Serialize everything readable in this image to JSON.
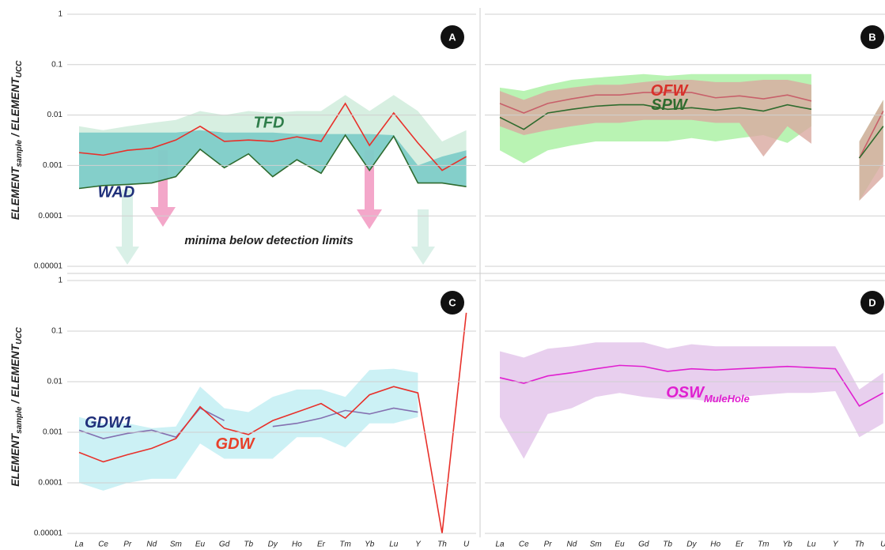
{
  "chart_data": [
    {
      "type": "line",
      "panel_label": "A",
      "log_y": true,
      "grid": true,
      "show_x_labels": false,
      "show_ytick_labels": true,
      "y_label": {
        "text": "ELEMENT",
        "sub": "sample",
        "text2": " / ELEMENT",
        "sub2": "UCC"
      },
      "annotation": "minima below detection limits",
      "categories": [
        "La",
        "Ce",
        "Pr",
        "Nd",
        "Sm",
        "Eu",
        "Gd",
        "Tb",
        "Dy",
        "Ho",
        "Er",
        "Tm",
        "Yb",
        "Lu",
        "Y",
        "Th",
        "U"
      ],
      "ylim": [
        1e-05,
        1
      ],
      "yticks": [
        {
          "value": 1e-05,
          "label": "0.00001"
        },
        0.0001,
        0.001,
        0.01,
        0.1,
        1
      ],
      "bands": [
        {
          "name": "TFD",
          "color": "#cdebd9",
          "label_color": "#2e7d4a",
          "upper": [
            0.006,
            0.005,
            0.006,
            0.007,
            0.008,
            0.012,
            0.01,
            0.012,
            0.011,
            0.012,
            0.012,
            0.025,
            0.012,
            0.025,
            0.012,
            0.003,
            0.005
          ],
          "lower": [
            0.00035,
            0.0004,
            0.00042,
            0.00045,
            0.0006,
            0.0021,
            0.0009,
            0.0017,
            0.0006,
            0.0013,
            0.0007,
            0.004,
            0.0008,
            0.0038,
            0.00045,
            0.00045,
            0.00038
          ]
        },
        {
          "name": "WAD",
          "color": "#6fc7c4",
          "label_color": "#1f2f7a",
          "upper": [
            0.0045,
            0.0045,
            0.0045,
            0.0045,
            0.0045,
            0.005,
            0.0045,
            0.0045,
            0.0045,
            0.0042,
            0.0042,
            0.0042,
            0.0042,
            0.004,
            0.001,
            0.0015,
            0.002
          ],
          "lower": [
            0.00035,
            0.0004,
            0.00042,
            0.00045,
            0.0006,
            0.0021,
            0.0009,
            0.0017,
            0.0006,
            0.0013,
            0.0007,
            0.004,
            0.0008,
            0.0038,
            0.00045,
            0.00045,
            0.00038
          ]
        }
      ],
      "series": [
        {
          "color": "#e8302a",
          "values": [
            0.0018,
            0.0016,
            0.002,
            0.0022,
            0.0032,
            0.006,
            0.003,
            0.0032,
            0.003,
            0.0037,
            0.003,
            0.017,
            0.0025,
            0.011,
            0.0028,
            0.0008,
            0.0015
          ]
        },
        {
          "color": "#2f6b2f",
          "values": [
            0.00035,
            0.0004,
            0.00042,
            0.00045,
            0.0006,
            0.0021,
            0.0009,
            0.0017,
            0.0006,
            0.0013,
            0.0007,
            0.004,
            0.0008,
            0.0038,
            0.00045,
            0.00045,
            0.00038
          ]
        }
      ]
    },
    {
      "type": "line",
      "panel_label": "B",
      "log_y": true,
      "grid": true,
      "show_x_labels": false,
      "show_ytick_labels": false,
      "categories": [
        "La",
        "Ce",
        "Pr",
        "Nd",
        "Sm",
        "Eu",
        "Gd",
        "Tb",
        "Dy",
        "Ho",
        "Er",
        "Tm",
        "Yb",
        "Lu",
        "Y",
        "Th",
        "U"
      ],
      "ylim": [
        1e-05,
        1
      ],
      "yticks": [
        {
          "value": 1e-05,
          "label": "0.00001"
        },
        0.0001,
        0.001,
        0.01,
        0.1,
        1
      ],
      "bands": [
        {
          "color": "#a8f0a0",
          "upper": [
            0.035,
            0.03,
            0.04,
            0.05,
            0.055,
            0.06,
            0.065,
            0.06,
            0.065,
            0.065,
            0.065,
            0.065,
            0.065,
            0.065,
            null,
            0.003,
            0.02
          ],
          "lower": [
            0.002,
            0.0011,
            0.002,
            0.0025,
            0.003,
            0.003,
            0.003,
            0.003,
            0.0035,
            0.003,
            0.0035,
            0.004,
            0.0028,
            0.006,
            null,
            0.0002,
            0.0012
          ]
        },
        {
          "color": "#d9a9a0",
          "upper": [
            0.03,
            0.02,
            0.03,
            0.035,
            0.04,
            0.04,
            0.045,
            0.05,
            0.05,
            0.045,
            0.045,
            0.05,
            0.05,
            0.04,
            null,
            0.003,
            0.02
          ],
          "lower": [
            0.006,
            0.004,
            0.005,
            0.006,
            0.007,
            0.007,
            0.008,
            0.008,
            0.008,
            0.007,
            0.007,
            0.0015,
            0.006,
            0.0027,
            null,
            0.0002,
            0.0006
          ]
        }
      ],
      "series": [
        {
          "name": "OFW",
          "color": "#c8606a",
          "label_color": "#d8312a",
          "values": [
            0.017,
            0.011,
            0.017,
            0.021,
            0.025,
            0.025,
            0.028,
            0.028,
            0.028,
            0.022,
            0.024,
            0.021,
            0.025,
            0.019,
            null,
            0.0014,
            0.012
          ]
        },
        {
          "name": "SPW",
          "color": "#2e6b2e",
          "label_color": "#2e6b2e",
          "values": [
            0.009,
            0.0052,
            0.011,
            0.013,
            0.015,
            0.016,
            0.016,
            0.013,
            0.014,
            0.0125,
            0.014,
            0.012,
            0.016,
            0.013,
            null,
            0.0014,
            0.006
          ]
        }
      ]
    },
    {
      "type": "line",
      "panel_label": "C",
      "log_y": true,
      "grid": true,
      "show_x_labels": true,
      "show_ytick_labels": true,
      "y_label": {
        "text": "ELEMENT",
        "sub": "sample",
        "text2": " / ELEMENT",
        "sub2": "UCC"
      },
      "categories": [
        "La",
        "Ce",
        "Pr",
        "Nd",
        "Sm",
        "Eu",
        "Gd",
        "Tb",
        "Dy",
        "Ho",
        "Er",
        "Tm",
        "Yb",
        "Lu",
        "Y",
        "Th",
        "U"
      ],
      "ylim": [
        1e-05,
        1
      ],
      "yticks": [
        {
          "value": 1e-05,
          "label": "0.00001"
        },
        0.0001,
        0.001,
        0.01,
        0.1,
        1
      ],
      "bands": [
        {
          "color": "#bfeef3",
          "upper": [
            0.002,
            0.0015,
            0.0015,
            0.0012,
            0.0013,
            0.008,
            0.003,
            0.0025,
            0.005,
            0.007,
            0.007,
            0.005,
            0.017,
            0.018,
            0.015,
            null,
            null
          ],
          "lower": [
            0.0001,
            7e-05,
            0.0001,
            0.00012,
            0.00012,
            0.0006,
            0.0003,
            0.0003,
            0.0003,
            0.0008,
            0.0008,
            0.0005,
            0.0015,
            0.0015,
            0.002,
            null,
            null
          ]
        }
      ],
      "series": [
        {
          "name": "GDW1",
          "color": "#8470b0",
          "label_color": "#1f2f7a",
          "values": [
            0.0011,
            0.00075,
            0.00095,
            0.0011,
            0.0008,
            0.003,
            0.0017,
            null,
            0.0013,
            0.0015,
            0.0019,
            0.0027,
            0.0023,
            0.003,
            0.0025,
            null,
            null
          ]
        },
        {
          "name": "GDW",
          "color": "#e8302a",
          "label_color": "#e8402a",
          "values": [
            0.0004,
            0.00026,
            0.00036,
            0.00048,
            0.00075,
            0.0032,
            0.0012,
            0.0009,
            0.0017,
            0.0025,
            0.0037,
            0.0019,
            0.0055,
            0.008,
            0.006,
            1e-05,
            0.23
          ]
        }
      ]
    },
    {
      "type": "line",
      "panel_label": "D",
      "log_y": true,
      "grid": true,
      "show_x_labels": true,
      "show_ytick_labels": false,
      "categories": [
        "La",
        "Ce",
        "Pr",
        "Nd",
        "Sm",
        "Eu",
        "Gd",
        "Tb",
        "Dy",
        "Ho",
        "Er",
        "Tm",
        "Yb",
        "Lu",
        "Y",
        "Th",
        "U"
      ],
      "ylim": [
        1e-05,
        1
      ],
      "yticks": [
        {
          "value": 1e-05,
          "label": "0.00001"
        },
        0.0001,
        0.001,
        0.01,
        0.1,
        1
      ],
      "bands": [
        {
          "color": "#e2c3ea",
          "upper": [
            0.04,
            0.03,
            0.045,
            0.05,
            0.06,
            0.06,
            0.06,
            0.045,
            0.055,
            0.05,
            0.05,
            0.05,
            0.05,
            0.05,
            0.05,
            0.007,
            0.015
          ],
          "lower": [
            0.002,
            0.0003,
            0.0023,
            0.003,
            0.005,
            0.006,
            0.005,
            0.0045,
            0.0045,
            0.004,
            0.005,
            0.0055,
            0.006,
            0.006,
            0.0065,
            0.0008,
            0.0015
          ]
        }
      ],
      "series": [
        {
          "name": "OSW",
          "sub": "MuleHole",
          "color": "#e020d0",
          "label_color": "#e020d0",
          "values": [
            0.012,
            0.0093,
            0.013,
            0.015,
            0.018,
            0.021,
            0.02,
            0.016,
            0.018,
            0.017,
            0.018,
            0.019,
            0.02,
            0.019,
            0.018,
            0.0033,
            0.006
          ]
        }
      ]
    }
  ]
}
